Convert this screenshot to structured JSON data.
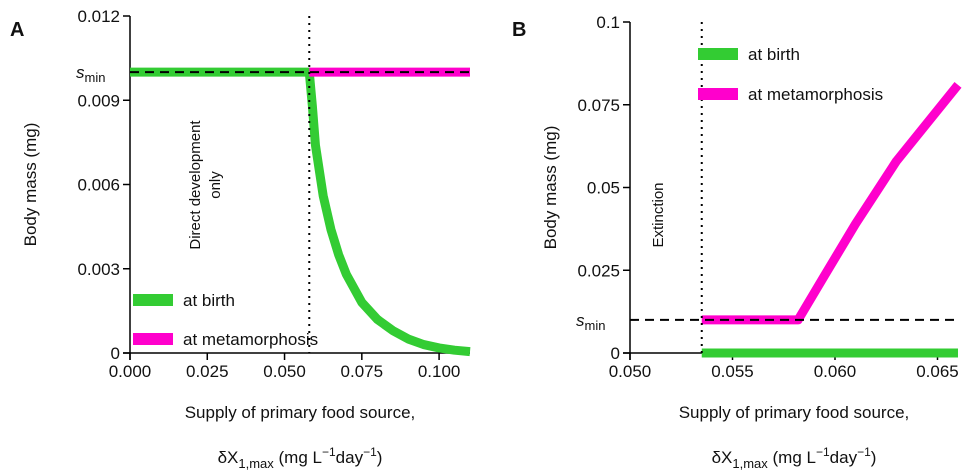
{
  "chart_data": [
    {
      "panel": "A",
      "type": "line",
      "xlabel_line1": "Supply of primary food source,",
      "xlabel_line2": {
        "prefix": "δX",
        "sub": "1,max",
        "mid": " (mg L",
        "sup1": "−1",
        "mid2": "day",
        "sup2": "−1",
        "suffix": ")"
      },
      "ylabel": "Body mass (mg)",
      "xlim": [
        0.0,
        0.11
      ],
      "ylim": [
        0.0,
        0.012
      ],
      "xticks": [
        "0.000",
        "0.025",
        "0.050",
        "0.075",
        "0.100"
      ],
      "xtick_values": [
        0.0,
        0.025,
        0.05,
        0.075,
        0.1
      ],
      "yticks": [
        "0",
        "0.003",
        "0.006",
        "0.009",
        "0.012"
      ],
      "ytick_values": [
        0,
        0.003,
        0.006,
        0.009,
        0.012
      ],
      "smin_value": 0.01,
      "smin_label": {
        "main": "s",
        "sub": "min"
      },
      "vline_x": 0.058,
      "annotation_lines": [
        "Direct development",
        "only"
      ],
      "legend_position": "bottom-left",
      "grid": false,
      "series": [
        {
          "name": "at birth",
          "color": "#33cc33",
          "x": [
            0.0,
            0.058,
            0.059,
            0.06,
            0.0625,
            0.065,
            0.0675,
            0.07,
            0.075,
            0.08,
            0.085,
            0.09,
            0.095,
            0.1,
            0.105,
            0.11
          ],
          "y": [
            0.01,
            0.01,
            0.0088,
            0.0074,
            0.0056,
            0.0044,
            0.0035,
            0.0028,
            0.0018,
            0.0012,
            0.0008,
            0.0005,
            0.0003,
            0.00018,
            0.0001,
            5e-05
          ]
        },
        {
          "name": "at metamorphosis",
          "color": "#ff00cc",
          "x": [
            0.058,
            0.11
          ],
          "y": [
            0.01,
            0.01
          ]
        }
      ]
    },
    {
      "panel": "B",
      "type": "line",
      "xlabel_line1": "Supply of primary food source,",
      "xlabel_line2": {
        "prefix": "δX",
        "sub": "1,max",
        "mid": " (mg L",
        "sup1": "−1",
        "mid2": "day",
        "sup2": "−1",
        "suffix": ")"
      },
      "ylabel": "Body mass (mg)",
      "xlim": [
        0.05,
        0.066
      ],
      "ylim": [
        0.0,
        0.1
      ],
      "xticks": [
        "0.050",
        "0.055",
        "0.060",
        "0.065"
      ],
      "xtick_values": [
        0.05,
        0.055,
        0.06,
        0.065
      ],
      "yticks": [
        "0",
        "0.025",
        "0.05",
        "0.075",
        "0.1"
      ],
      "ytick_values": [
        0,
        0.025,
        0.05,
        0.075,
        0.1
      ],
      "smin_value": 0.01,
      "smin_label": {
        "main": "s",
        "sub": "min"
      },
      "vline_x": 0.0535,
      "annotation_lines": [
        "Extinction"
      ],
      "legend_position": "top-left",
      "grid": false,
      "series": [
        {
          "name": "at birth",
          "color": "#33cc33",
          "x": [
            0.0535,
            0.066
          ],
          "y": [
            0.0,
            0.0
          ]
        },
        {
          "name": "at metamorphosis",
          "color": "#ff00cc",
          "x": [
            0.0535,
            0.0582,
            0.0595,
            0.061,
            0.063,
            0.066
          ],
          "y": [
            0.01,
            0.01,
            0.0235,
            0.039,
            0.058,
            0.081
          ]
        }
      ]
    }
  ]
}
